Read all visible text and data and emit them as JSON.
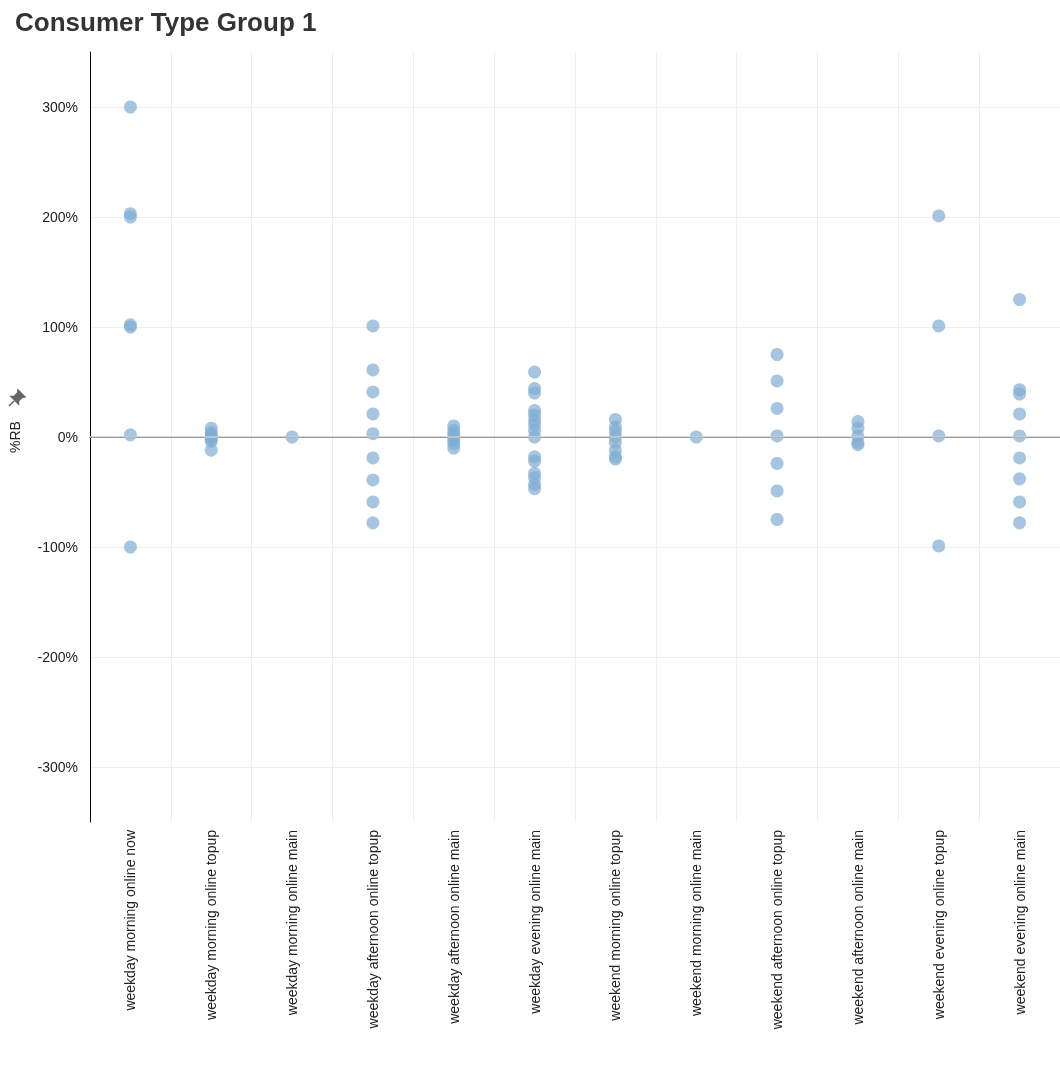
{
  "chart_data": {
    "type": "scatter",
    "title": "Consumer Type Group 1",
    "ylabel": "%RB",
    "categories": [
      "weekday morning online now",
      "weekday morning online topup",
      "weekday morning online main",
      "weekday afternoon online topup",
      "weekday afternoon online main",
      "weekday evening online main",
      "weekend morning online topup",
      "weekend morning online main",
      "weekend afternoon online topup",
      "weekend afternoon online main",
      "weekend evening online topup",
      "weekend evening online main"
    ],
    "series": [
      {
        "color": "#7fadd4",
        "x": [
          "weekday morning online now",
          "weekday morning online now",
          "weekday morning online now",
          "weekday morning online now",
          "weekday morning online now",
          "weekday morning online now",
          "weekday morning online now",
          "weekday morning online topup",
          "weekday morning online topup",
          "weekday morning online topup",
          "weekday morning online topup",
          "weekday morning online topup",
          "weekday morning online topup",
          "weekday morning online topup",
          "weekday morning online main",
          "weekday afternoon online topup",
          "weekday afternoon online topup",
          "weekday afternoon online topup",
          "weekday afternoon online topup",
          "weekday afternoon online topup",
          "weekday afternoon online topup",
          "weekday afternoon online topup",
          "weekday afternoon online topup",
          "weekday afternoon online topup",
          "weekday afternoon online main",
          "weekday afternoon online main",
          "weekday afternoon online main",
          "weekday afternoon online main",
          "weekday afternoon online main",
          "weekday afternoon online main",
          "weekday afternoon online main",
          "weekday evening online main",
          "weekday evening online main",
          "weekday evening online main",
          "weekday evening online main",
          "weekday evening online main",
          "weekday evening online main",
          "weekday evening online main",
          "weekday evening online main",
          "weekday evening online main",
          "weekday evening online main",
          "weekday evening online main",
          "weekday evening online main",
          "weekday evening online main",
          "weekday evening online main",
          "weekday evening online main",
          "weekend morning online topup",
          "weekend morning online topup",
          "weekend morning online topup",
          "weekend morning online topup",
          "weekend morning online topup",
          "weekend morning online topup",
          "weekend morning online topup",
          "weekend morning online topup",
          "weekend morning online main",
          "weekend afternoon online topup",
          "weekend afternoon online topup",
          "weekend afternoon online topup",
          "weekend afternoon online topup",
          "weekend afternoon online topup",
          "weekend afternoon online topup",
          "weekend afternoon online topup",
          "weekend afternoon online main",
          "weekend afternoon online main",
          "weekend afternoon online main",
          "weekend afternoon online main",
          "weekend afternoon online main",
          "weekend evening online topup",
          "weekend evening online topup",
          "weekend evening online topup",
          "weekend evening online topup",
          "weekend evening online main",
          "weekend evening online main",
          "weekend evening online main",
          "weekend evening online main",
          "weekend evening online main",
          "weekend evening online main",
          "weekend evening online main",
          "weekend evening online main",
          "weekend evening online main"
        ],
        "values": [
          300,
          203,
          200,
          102,
          100,
          2,
          -100,
          8,
          4,
          2,
          0,
          -2,
          -4,
          -12,
          0,
          101,
          61,
          41,
          21,
          3,
          -19,
          -39,
          -59,
          -78,
          10,
          6,
          3,
          0,
          -3,
          -6,
          -10,
          59,
          44,
          40,
          24,
          20,
          15,
          11,
          6,
          0,
          -18,
          -22,
          -33,
          -37,
          -43,
          -47,
          16,
          9,
          5,
          0,
          -5,
          -12,
          -18,
          -20,
          0,
          75,
          51,
          26,
          1,
          -24,
          -49,
          -75,
          14,
          8,
          1,
          -5,
          -7,
          201,
          101,
          1,
          -99,
          125,
          43,
          39,
          21,
          1,
          -19,
          -38,
          -59,
          -78
        ]
      }
    ],
    "ylim": [
      -350,
      350
    ],
    "yticks": [
      {
        "value": -300,
        "label": "-300%"
      },
      {
        "value": -200,
        "label": "-200%"
      },
      {
        "value": -100,
        "label": "-100%"
      },
      {
        "value": 0,
        "label": "0%"
      },
      {
        "value": 100,
        "label": "100%"
      },
      {
        "value": 200,
        "label": "200%"
      },
      {
        "value": 300,
        "label": "300%"
      }
    ],
    "ref_lines": [
      {
        "axis": "y",
        "value": 0,
        "color": "#cccccc"
      }
    ],
    "grid": true,
    "marker": "circle"
  }
}
